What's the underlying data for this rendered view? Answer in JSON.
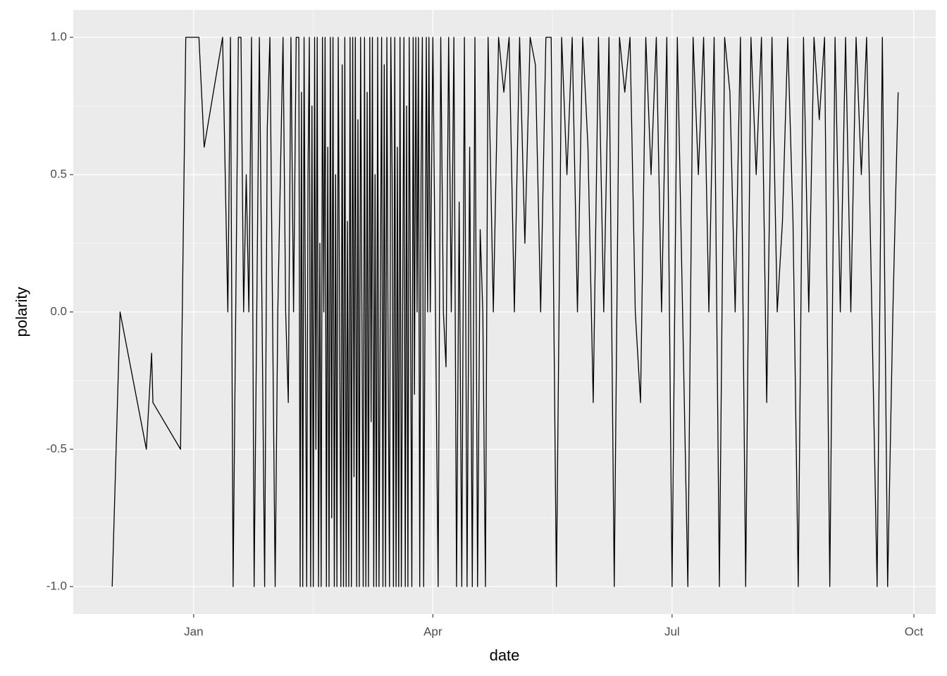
{
  "chart_data": {
    "type": "line",
    "x_label": "date",
    "y_label": "polarity",
    "x": [
      -31,
      -28,
      -18,
      -16,
      -15.5,
      -5,
      -3,
      2,
      4,
      11,
      12,
      13,
      14,
      15,
      16,
      17,
      18,
      19,
      20,
      21,
      22,
      23,
      24,
      25,
      26,
      27,
      28,
      29,
      30,
      31,
      32,
      33,
      34,
      35,
      36,
      37,
      38,
      39,
      40,
      40.5,
      41,
      41.5,
      42,
      42.5,
      43,
      43.5,
      44,
      44.5,
      45,
      45.5,
      46,
      46.5,
      47,
      47.5,
      48,
      48.5,
      49,
      49.5,
      50,
      50.5,
      51,
      51.5,
      52,
      52.5,
      53,
      53.5,
      54,
      54.5,
      55,
      55.5,
      56,
      56.5,
      57,
      57.5,
      58,
      58.5,
      59,
      59.5,
      60,
      60.5,
      61,
      61.5,
      62,
      62.5,
      63,
      63.5,
      64,
      64.5,
      65,
      65.5,
      66,
      66.5,
      67,
      67.5,
      68,
      68.5,
      69,
      69.5,
      70,
      70.5,
      71,
      71.5,
      72,
      72.5,
      73,
      73.5,
      74,
      74.5,
      75,
      75.5,
      76,
      76.5,
      77,
      77.5,
      78,
      78.5,
      79,
      79.5,
      80,
      80.5,
      81,
      81.5,
      82,
      82.5,
      83,
      83.5,
      84,
      84.5,
      85,
      85.5,
      86,
      86.5,
      87,
      87.5,
      88,
      88.5,
      89,
      89.5,
      90,
      91,
      92,
      93,
      94,
      95,
      96,
      97,
      98,
      99,
      100,
      101,
      102,
      103,
      104,
      105,
      106,
      107,
      108,
      109,
      110,
      111,
      112,
      113,
      114,
      116,
      118,
      120,
      122,
      124,
      126,
      128,
      130,
      132,
      134,
      136,
      138,
      140,
      142,
      144,
      146,
      148,
      150,
      152,
      154,
      156,
      158,
      160,
      162,
      164,
      166,
      168,
      170,
      172,
      174,
      176,
      178,
      180,
      182,
      184,
      186,
      188,
      190,
      192,
      194,
      196,
      198,
      200,
      202,
      204,
      206,
      208,
      210,
      212,
      214,
      216,
      218,
      220,
      222,
      224,
      226,
      228,
      230,
      232,
      234,
      236,
      238,
      240,
      242,
      244,
      246,
      248,
      250,
      252,
      254,
      256,
      258,
      260,
      262,
      264,
      266,
      268
    ],
    "values": [
      -1,
      0,
      -0.5,
      -0.15,
      -0.33,
      -0.5,
      1,
      1,
      0.6,
      1,
      0.5,
      0,
      1,
      -1,
      0,
      1,
      1,
      0,
      0.5,
      0,
      1,
      -1,
      0,
      1,
      0,
      -1,
      0.67,
      1,
      0,
      -1,
      0,
      0.5,
      1,
      0,
      -0.33,
      1,
      0,
      1,
      1,
      -1,
      0.8,
      -1,
      1,
      0,
      -1,
      0.5,
      1,
      -1,
      0.75,
      -1,
      1,
      -0.5,
      1,
      -1,
      0.25,
      -1,
      1,
      0,
      1,
      -1,
      0.6,
      -1,
      1,
      -0.75,
      1,
      -1,
      0.5,
      -1,
      1,
      0,
      -1,
      0.9,
      -1,
      1,
      -1,
      0.33,
      -1,
      1,
      -1,
      1,
      -0.6,
      1,
      -1,
      0.7,
      -1,
      1,
      0,
      -1,
      1,
      -1,
      0.8,
      -1,
      1,
      -0.4,
      1,
      -1,
      0.5,
      -1,
      1,
      -1,
      0,
      1,
      -1,
      0.9,
      -1,
      1,
      -0.2,
      -1,
      1,
      0.5,
      -1,
      1,
      -1,
      0.6,
      -1,
      1,
      -1,
      0,
      1,
      -1,
      0.75,
      -1,
      1,
      0,
      -1,
      1,
      -0.3,
      1,
      0,
      1,
      -1,
      0.5,
      1,
      -1,
      0,
      1,
      0,
      1,
      0,
      1,
      0,
      -1,
      1,
      0,
      -0.2,
      1,
      0,
      1,
      -1,
      0.4,
      -1,
      1,
      -1,
      0.6,
      -1,
      1,
      -1,
      0.3,
      0,
      -1,
      1,
      0.5,
      0,
      1,
      0.8,
      1,
      0,
      1,
      0.25,
      1,
      0.9,
      0,
      1,
      1,
      -1,
      1,
      0.5,
      1,
      0,
      1,
      0.6,
      -0.33,
      1,
      0,
      1,
      -1,
      1,
      0.8,
      1,
      0,
      -0.33,
      1,
      0.5,
      1,
      0,
      1,
      -1,
      1,
      0,
      -1,
      1,
      0.5,
      1,
      0,
      1,
      -1,
      1,
      0.8,
      0,
      1,
      -1,
      1,
      0.5,
      1,
      -0.33,
      1,
      0,
      0.33,
      1,
      0.33,
      -1,
      1,
      0,
      1,
      0.7,
      1,
      -1,
      1,
      0,
      1,
      0,
      1,
      0.5,
      1,
      0,
      -1,
      1,
      -1,
      0,
      0.8
    ],
    "color": "#000000",
    "xlim": [
      -45.8,
      282.3
    ],
    "ylim": [
      -1.1,
      1.1
    ],
    "xticks": [
      {
        "value": 0,
        "label": "Jan"
      },
      {
        "value": 91,
        "label": "Apr"
      },
      {
        "value": 182,
        "label": "Jul"
      },
      {
        "value": 274,
        "label": "Oct"
      }
    ],
    "yticks": [
      {
        "value": -1,
        "label": "-1.0"
      },
      {
        "value": -0.5,
        "label": "-0.5"
      },
      {
        "value": 0,
        "label": "0.0"
      },
      {
        "value": 0.5,
        "label": "0.5"
      },
      {
        "value": 1,
        "label": "1.0"
      }
    ],
    "minor_xticks": [
      45.5,
      136.5,
      228
    ],
    "minor_yticks": [
      -0.75,
      -0.25,
      0.25,
      0.75
    ],
    "grid": true
  }
}
